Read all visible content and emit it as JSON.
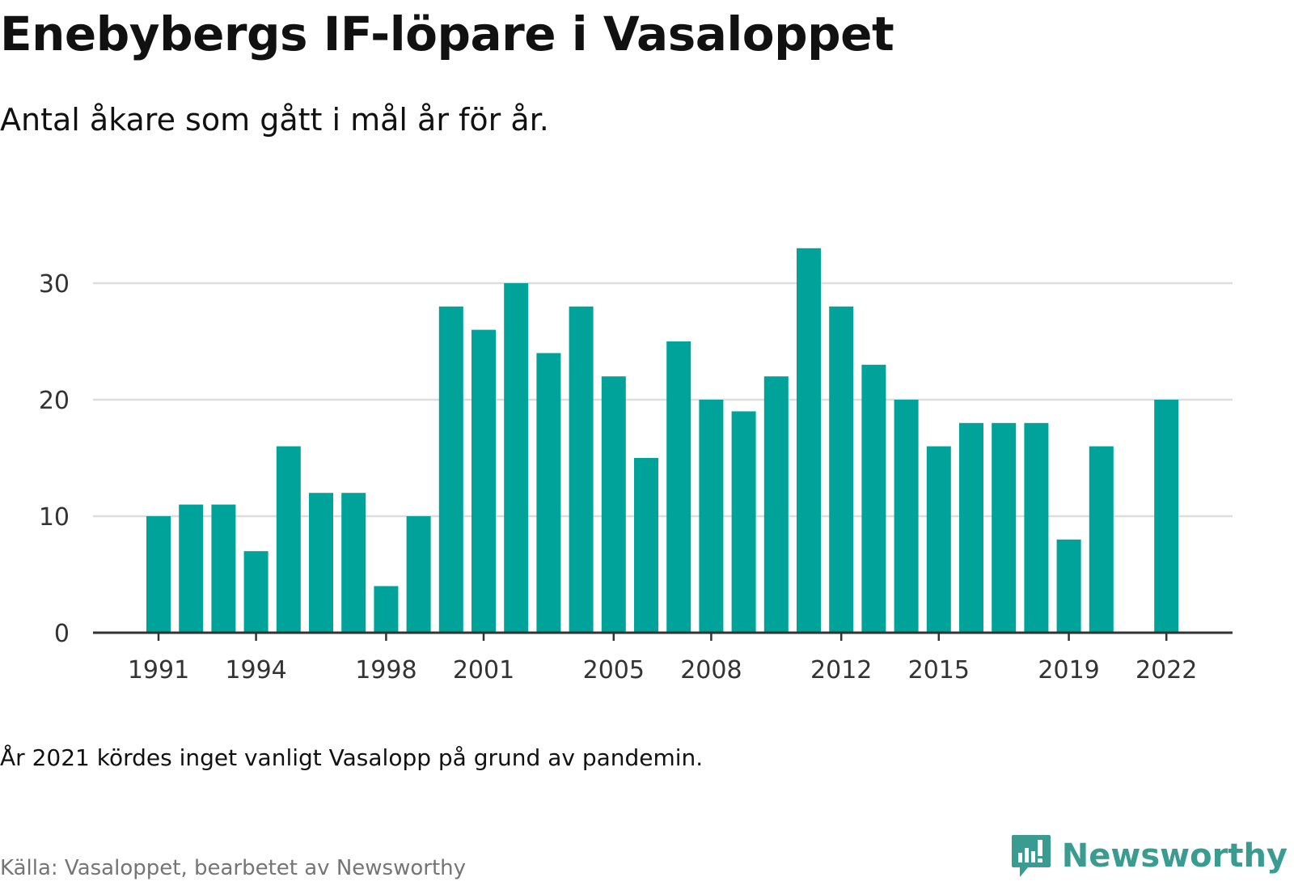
{
  "title": "Enebybergs IF-löpare i Vasaloppet",
  "subtitle": "Antal åkare som gått i mål år för år.",
  "note": "År 2021 kördes inget vanligt Vasalopp på grund av pandemin.",
  "source": "Källa: Vasaloppet, bearbetet av Newsworthy",
  "brand": "Newsworthy",
  "colors": {
    "bar": "#00a39a",
    "grid": "#dddddd",
    "axis": "#333333",
    "brand": "#3a9c91"
  },
  "chart_data": {
    "type": "bar",
    "title": "Enebybergs IF-löpare i Vasaloppet",
    "subtitle": "Antal åkare som gått i mål år för år.",
    "x": [
      1991,
      1992,
      1993,
      1994,
      1995,
      1996,
      1997,
      1998,
      1999,
      2000,
      2001,
      2002,
      2003,
      2004,
      2005,
      2006,
      2007,
      2008,
      2009,
      2010,
      2011,
      2012,
      2013,
      2014,
      2015,
      2016,
      2017,
      2018,
      2019,
      2020,
      2021,
      2022
    ],
    "values": [
      10,
      11,
      11,
      7,
      16,
      12,
      12,
      4,
      10,
      28,
      26,
      30,
      24,
      28,
      22,
      15,
      25,
      20,
      19,
      22,
      33,
      28,
      23,
      20,
      16,
      18,
      18,
      18,
      8,
      16,
      null,
      20
    ],
    "xticks": [
      "1991",
      "1994",
      "1998",
      "2001",
      "2005",
      "2008",
      "2012",
      "2015",
      "2019",
      "2022"
    ],
    "yticks": [
      "0",
      "10",
      "20",
      "30"
    ],
    "ylim": [
      0,
      34
    ],
    "xlabel": "",
    "ylabel": "",
    "grid": true
  }
}
